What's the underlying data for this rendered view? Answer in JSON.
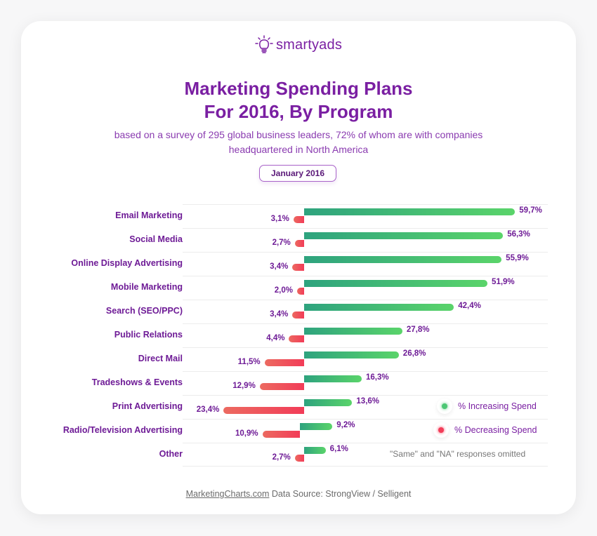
{
  "logo": {
    "text": "smartyads"
  },
  "header": {
    "title_line1": "Marketing Spending Plans",
    "title_line2": "For 2016, By Program",
    "subtitle_line1": "based on a survey of 295 global business leaders, 72% of whom are with companies",
    "subtitle_line2": "headquartered in North America",
    "date": "January 2016"
  },
  "legend": {
    "increasing": {
      "label": "% Increasing Spend",
      "color": "#4cc774"
    },
    "decreasing": {
      "label": "% Decreasing Spend",
      "color": "#f23c58"
    },
    "note": "\"Same\" and \"NA\" responses omitted"
  },
  "footer": {
    "link": "MarketingCharts.com",
    "source": " Data Source: StrongView / Selligent"
  },
  "colors": {
    "brand_purple": "#7a1fa2",
    "increase_start": "#2ea37e",
    "increase_end": "#5ad46a",
    "decrease_start": "#ec6a60",
    "decrease_end": "#f23c58"
  },
  "rows": [
    {
      "label": "Email Marketing",
      "inc": "59,7%",
      "dec": "3,1%"
    },
    {
      "label": "Social Media",
      "inc": "56,3%",
      "dec": "2,7%"
    },
    {
      "label": "Online Display Advertising",
      "inc": "55,9%",
      "dec": "3,4%"
    },
    {
      "label": "Mobile Marketing",
      "inc": "51,9%",
      "dec": "2,0%"
    },
    {
      "label": "Search (SEO/PPC)",
      "inc": "42,4%",
      "dec": "3,4%"
    },
    {
      "label": "Public Relations",
      "inc": "27,8%",
      "dec": "4,4%"
    },
    {
      "label": "Direct Mail",
      "inc": "26,8%",
      "dec": "11,5%"
    },
    {
      "label": "Tradeshows & Events",
      "inc": "16,3%",
      "dec": "12,9%"
    },
    {
      "label": "Print Advertising",
      "inc": "13,6%",
      "dec": "23,4%"
    },
    {
      "label": "Radio/Television Advertising",
      "inc": "9,2%",
      "dec": "10,9%"
    },
    {
      "label": "Other",
      "inc": "6,1%",
      "dec": "2,7%"
    }
  ],
  "chart_data": {
    "type": "bar",
    "orientation": "horizontal",
    "title": "Marketing Spending Plans For 2016, By Program",
    "subtitle": "based on a survey of 295 global business leaders, 72% of whom are with companies headquartered in North America",
    "date": "January 2016",
    "categories": [
      "Email Marketing",
      "Social Media",
      "Online Display Advertising",
      "Mobile Marketing",
      "Search (SEO/PPC)",
      "Public Relations",
      "Direct Mail",
      "Tradeshows & Events",
      "Print Advertising",
      "Radio/Television Advertising",
      "Other"
    ],
    "series": [
      {
        "name": "% Increasing Spend",
        "color": "#4cc774",
        "values": [
          59.7,
          56.3,
          55.9,
          51.9,
          42.4,
          27.8,
          26.8,
          16.3,
          13.6,
          9.2,
          6.1
        ]
      },
      {
        "name": "% Decreasing Spend",
        "color": "#f23c58",
        "values": [
          3.1,
          2.7,
          3.4,
          2.0,
          3.4,
          4.4,
          11.5,
          12.9,
          23.4,
          10.9,
          2.7
        ]
      }
    ],
    "xlabel": "",
    "ylabel": "",
    "grid": "horizontal row separators",
    "legend_position": "lower right",
    "annotation": "\"Same\" and \"NA\" responses omitted",
    "source": "MarketingCharts.com Data Source: StrongView / Selligent"
  }
}
